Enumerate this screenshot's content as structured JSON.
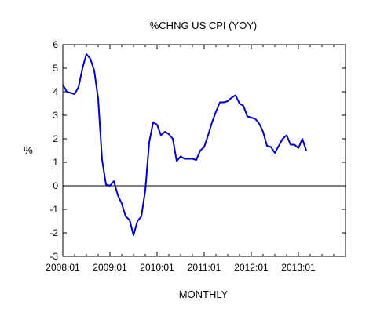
{
  "chart_data": {
    "type": "line",
    "title": "%CHNG US CPI (YOY)",
    "xlabel": "MONTHLY",
    "ylabel": "%",
    "ylim": [
      -3,
      6
    ],
    "yticks": [
      "-3",
      "-2",
      "-1",
      "0",
      "1",
      "2",
      "3",
      "4",
      "5",
      "6"
    ],
    "xlim": [
      "2008-01",
      "2014-01"
    ],
    "xticks": [
      {
        "date": "2008-01",
        "label": "2008:01"
      },
      {
        "date": "2009-01",
        "label": "2009:01"
      },
      {
        "date": "2010-01",
        "label": "2010:01"
      },
      {
        "date": "2011-01",
        "label": "2011:01"
      },
      {
        "date": "2012-01",
        "label": "2012:01"
      },
      {
        "date": "2013-01",
        "label": "2013:01"
      }
    ],
    "zero_line": true,
    "grid": false,
    "legend": "none",
    "line_color": "#0000cc",
    "series": [
      {
        "x": [
          "2008-01",
          "2008-02",
          "2008-03",
          "2008-04",
          "2008-05",
          "2008-06",
          "2008-07",
          "2008-08",
          "2008-09",
          "2008-10",
          "2008-11",
          "2008-12",
          "2009-01",
          "2009-02",
          "2009-03",
          "2009-04",
          "2009-05",
          "2009-06",
          "2009-07",
          "2009-08",
          "2009-09",
          "2009-10",
          "2009-11",
          "2009-12",
          "2010-01",
          "2010-02",
          "2010-03",
          "2010-04",
          "2010-05",
          "2010-06",
          "2010-07",
          "2010-08",
          "2010-09",
          "2010-10",
          "2010-11",
          "2010-12",
          "2011-01",
          "2011-02",
          "2011-03",
          "2011-04",
          "2011-05",
          "2011-06",
          "2011-07",
          "2011-08",
          "2011-09",
          "2011-10",
          "2011-11",
          "2011-12",
          "2012-01",
          "2012-02",
          "2012-03",
          "2012-04",
          "2012-05",
          "2012-06",
          "2012-07",
          "2012-08",
          "2012-09",
          "2012-10",
          "2012-11",
          "2012-12",
          "2013-01",
          "2013-02",
          "2013-03"
        ],
        "y": [
          4.3,
          4.0,
          3.95,
          3.9,
          4.2,
          5.0,
          5.6,
          5.4,
          4.9,
          3.7,
          1.1,
          0.05,
          0.0,
          0.2,
          -0.4,
          -0.75,
          -1.3,
          -1.45,
          -2.1,
          -1.5,
          -1.3,
          -0.2,
          1.85,
          2.7,
          2.6,
          2.15,
          2.3,
          2.2,
          2.0,
          1.05,
          1.25,
          1.15,
          1.15,
          1.15,
          1.1,
          1.5,
          1.65,
          2.15,
          2.7,
          3.15,
          3.55,
          3.55,
          3.6,
          3.75,
          3.85,
          3.5,
          3.4,
          2.95,
          2.9,
          2.85,
          2.65,
          2.3,
          1.7,
          1.65,
          1.4,
          1.7,
          2.0,
          2.15,
          1.75,
          1.75,
          1.6,
          2.0,
          1.5
        ]
      }
    ]
  }
}
